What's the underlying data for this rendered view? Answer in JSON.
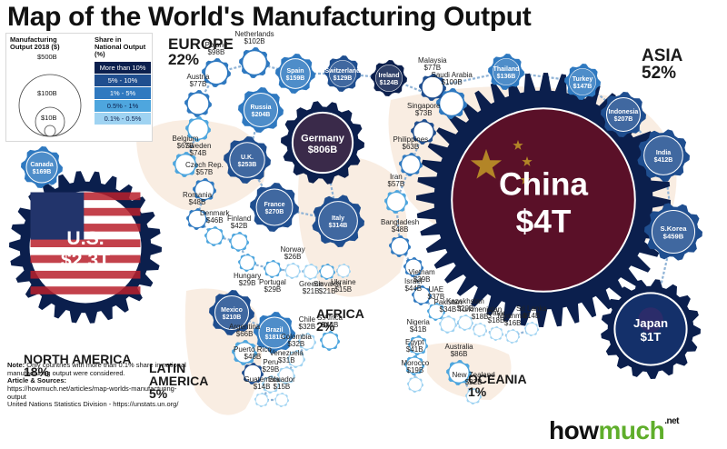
{
  "title": "Map of the World's Manufacturing Output",
  "legend": {
    "size_title": "Manufacturing Output 2018 ($)",
    "size_labels": [
      "$500B",
      "$100B",
      "$10B"
    ],
    "share_title": "Share in National Output (%)",
    "share_levels": [
      {
        "label": "More than 10%",
        "color": "#0b1f4d"
      },
      {
        "label": "5% - 10%",
        "color": "#1f4e8f"
      },
      {
        "label": "1% - 5%",
        "color": "#2f79c0"
      },
      {
        "label": "0.5% - 1%",
        "color": "#4ea6de"
      },
      {
        "label": "0.1% - 0.5%",
        "color": "#9fd3f2"
      }
    ]
  },
  "regions": {
    "europe": {
      "name": "EUROPE",
      "pct": "22%"
    },
    "asia": {
      "name": "ASIA",
      "pct": "52%"
    },
    "north_america": {
      "name": "NORTH AMERICA",
      "pct": "18%"
    },
    "latin_america": {
      "name": "LATIN AMERICA",
      "pct": "5%"
    },
    "africa": {
      "name": "AFRICA",
      "pct": "2%"
    },
    "oceania": {
      "name": "OCEANIA",
      "pct": "1%"
    }
  },
  "chart_data": {
    "type": "bubble",
    "title": "Map of the World's Manufacturing Output",
    "unit": "Manufacturing Output 2018 ($)",
    "series": [
      {
        "name": "China",
        "value": "$4T",
        "usd_billion": 4000
      },
      {
        "name": "U.S.",
        "value": "$2.3T",
        "usd_billion": 2300
      },
      {
        "name": "Japan",
        "value": "$1T",
        "usd_billion": 1000
      },
      {
        "name": "Germany",
        "value": "$806B",
        "usd_billion": 806
      },
      {
        "name": "S.Korea",
        "value": "$459B",
        "usd_billion": 459
      },
      {
        "name": "India",
        "value": "$412B",
        "usd_billion": 412
      },
      {
        "name": "Italy",
        "value": "$314B",
        "usd_billion": 314
      },
      {
        "name": "France",
        "value": "$270B",
        "usd_billion": 270
      },
      {
        "name": "U.K.",
        "value": "$253B",
        "usd_billion": 253
      },
      {
        "name": "Mexico",
        "value": "$210B",
        "usd_billion": 210
      },
      {
        "name": "Indonesia",
        "value": "$207B",
        "usd_billion": 207
      },
      {
        "name": "Russia",
        "value": "$204B",
        "usd_billion": 204
      },
      {
        "name": "Brazil",
        "value": "$181B",
        "usd_billion": 181
      },
      {
        "name": "Canada",
        "value": "$169B",
        "usd_billion": 169
      },
      {
        "name": "Spain",
        "value": "$159B",
        "usd_billion": 159
      },
      {
        "name": "Turkey",
        "value": "$147B",
        "usd_billion": 147
      },
      {
        "name": "Thailand",
        "value": "$136B",
        "usd_billion": 136
      },
      {
        "name": "Switzerland",
        "value": "$129B",
        "usd_billion": 129
      },
      {
        "name": "Ireland",
        "value": "$124B",
        "usd_billion": 124
      },
      {
        "name": "Netherlands",
        "value": "$102B",
        "usd_billion": 102
      },
      {
        "name": "Saudi Arabia",
        "value": "$100B",
        "usd_billion": 100
      },
      {
        "name": "Poland",
        "value": "$98B",
        "usd_billion": 98
      },
      {
        "name": "Australia",
        "value": "$86B",
        "usd_billion": 86
      },
      {
        "name": "Austria",
        "value": "$77B",
        "usd_billion": 77
      },
      {
        "name": "Malaysia",
        "value": "$77B",
        "usd_billion": 77
      },
      {
        "name": "Sweden",
        "value": "$74B",
        "usd_billion": 74
      },
      {
        "name": "Singapore",
        "value": "$73B",
        "usd_billion": 73
      },
      {
        "name": "Belgium",
        "value": "$67B",
        "usd_billion": 67
      },
      {
        "name": "Argentina",
        "value": "$66B",
        "usd_billion": 66
      },
      {
        "name": "Philippines",
        "value": "$63B",
        "usd_billion": 63
      },
      {
        "name": "Iran",
        "value": "$57B",
        "usd_billion": 57
      },
      {
        "name": "Czech Rep.",
        "value": "$57B",
        "usd_billion": 57
      },
      {
        "name": "Romania",
        "value": "$48B",
        "usd_billion": 48
      },
      {
        "name": "Bangladesh",
        "value": "$48B",
        "usd_billion": 48
      },
      {
        "name": "Puerto Rico",
        "value": "$48B",
        "usd_billion": 48
      },
      {
        "name": "Denmark",
        "value": "$46B",
        "usd_billion": 46
      },
      {
        "name": "Israel",
        "value": "$44B",
        "usd_billion": 44
      },
      {
        "name": "S.Africa",
        "value": "$43B",
        "usd_billion": 43
      },
      {
        "name": "Finland",
        "value": "$42B",
        "usd_billion": 42
      },
      {
        "name": "Nigeria",
        "value": "$41B",
        "usd_billion": 41
      },
      {
        "name": "Egypt",
        "value": "$41B",
        "usd_billion": 41
      },
      {
        "name": "Vietnam",
        "value": "$39B",
        "usd_billion": 39
      },
      {
        "name": "UAE",
        "value": "$37B",
        "usd_billion": 37
      },
      {
        "name": "Pakistan",
        "value": "$34B",
        "usd_billion": 34
      },
      {
        "name": "Chile",
        "value": "$32B",
        "usd_billion": 32
      },
      {
        "name": "Colombia",
        "value": "$32B",
        "usd_billion": 32
      },
      {
        "name": "Venezuela",
        "value": "$31B",
        "usd_billion": 31
      },
      {
        "name": "Hungary",
        "value": "$29B",
        "usd_billion": 29
      },
      {
        "name": "Portugal",
        "value": "$29B",
        "usd_billion": 29
      },
      {
        "name": "Peru",
        "value": "$29B",
        "usd_billion": 29
      },
      {
        "name": "Norway",
        "value": "$26B",
        "usd_billion": 26
      },
      {
        "name": "New Zealand",
        "value": "$22B",
        "usd_billion": 22
      },
      {
        "name": "Greece",
        "value": "$21B",
        "usd_billion": 21
      },
      {
        "name": "Slovakia",
        "value": "$21B",
        "usd_billion": 21
      },
      {
        "name": "Kazakhstan",
        "value": "$20B",
        "usd_billion": 20
      },
      {
        "name": "Morocco",
        "value": "$19B",
        "usd_billion": 19
      },
      {
        "name": "Turkmenistan",
        "value": "$18B",
        "usd_billion": 18
      },
      {
        "name": "Qatar",
        "value": "$18B",
        "usd_billion": 18
      },
      {
        "name": "Myanmar",
        "value": "$16B",
        "usd_billion": 16
      },
      {
        "name": "Ukraine",
        "value": "$15B",
        "usd_billion": 15
      },
      {
        "name": "Ecuador",
        "value": "$15B",
        "usd_billion": 15
      },
      {
        "name": "Sri Lanka",
        "value": "$14B",
        "usd_billion": 14
      },
      {
        "name": "Guatemala",
        "value": "$14B",
        "usd_billion": 14
      }
    ]
  },
  "note": {
    "label": "Note:",
    "text": "Only countries with more than 0.1% share in national manufacturing output were considered.",
    "sources_label": "Article & Sources:",
    "source1": "https://howmuch.net/articles/map-worlds-manufacturing-output",
    "source2": "United Nations Statistics Division - https://unstats.un.org/"
  },
  "logo": {
    "part1": "how",
    "part2": "much",
    "suffix": ".net"
  }
}
